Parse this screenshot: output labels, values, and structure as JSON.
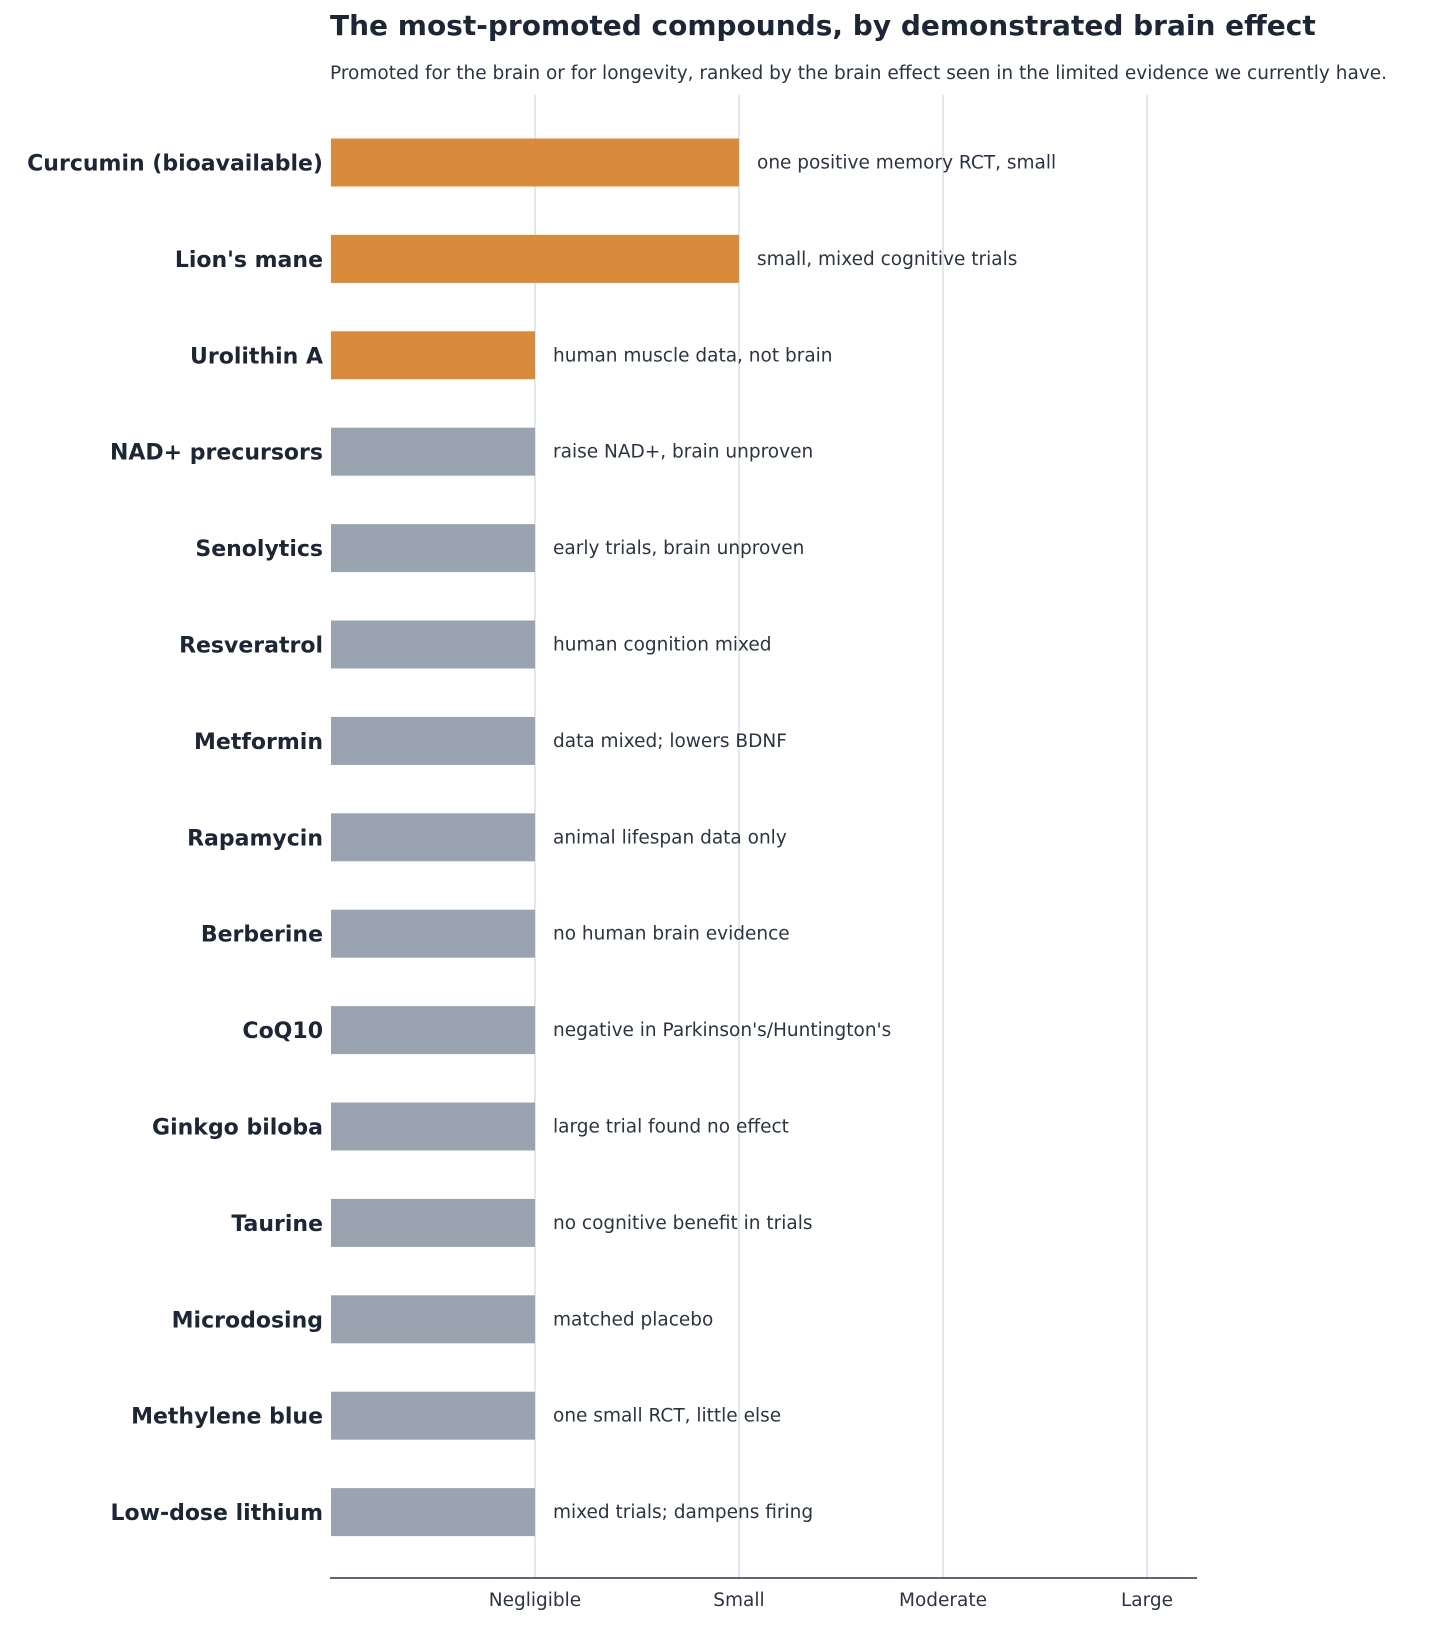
{
  "chart_data": {
    "type": "bar",
    "orientation": "horizontal",
    "title": "The most-promoted compounds, by demonstrated brain effect",
    "subtitle": "Promoted for the brain or for longevity, ranked by the brain effect seen in the limited evidence we currently have.",
    "xlabel": "",
    "ylabel": "",
    "x_ticks": [
      "Negligible",
      "Small",
      "Moderate",
      "Large"
    ],
    "x_tick_values": [
      1,
      2,
      3,
      4
    ],
    "xlim": [
      0,
      4.25
    ],
    "grid": "vertical",
    "categories": [
      "Curcumin (bioavailable)",
      "Lion's mane",
      "Urolithin A",
      "NAD+ precursors",
      "Senolytics",
      "Resveratrol",
      "Metformin",
      "Rapamycin",
      "Berberine",
      "CoQ10",
      "Ginkgo biloba",
      "Taurine",
      "Microdosing",
      "Methylene blue",
      "Low-dose lithium"
    ],
    "values": [
      2,
      2,
      1,
      1,
      1,
      1,
      1,
      1,
      1,
      1,
      1,
      1,
      1,
      1,
      1
    ],
    "highlighted": [
      true,
      true,
      true,
      false,
      false,
      false,
      false,
      false,
      false,
      false,
      false,
      false,
      false,
      false,
      false
    ],
    "annotations": [
      "one positive memory RCT, small",
      "small, mixed cognitive trials",
      "human muscle data, not brain",
      "raise NAD+, brain unproven",
      "early trials, brain unproven",
      "human cognition mixed",
      "data mixed; lowers BDNF",
      "animal lifespan data only",
      "no human brain evidence",
      "negative in Parkinson's/Huntington's",
      "large trial found no effect",
      "no cognitive benefit in trials",
      "matched placebo",
      "one small RCT, little else",
      "mixed trials; dampens firing"
    ],
    "colors": {
      "highlight": "#d98b3c",
      "default": "#9aa4b1",
      "text": "#1c2635",
      "grid": "#dde3e8"
    }
  }
}
